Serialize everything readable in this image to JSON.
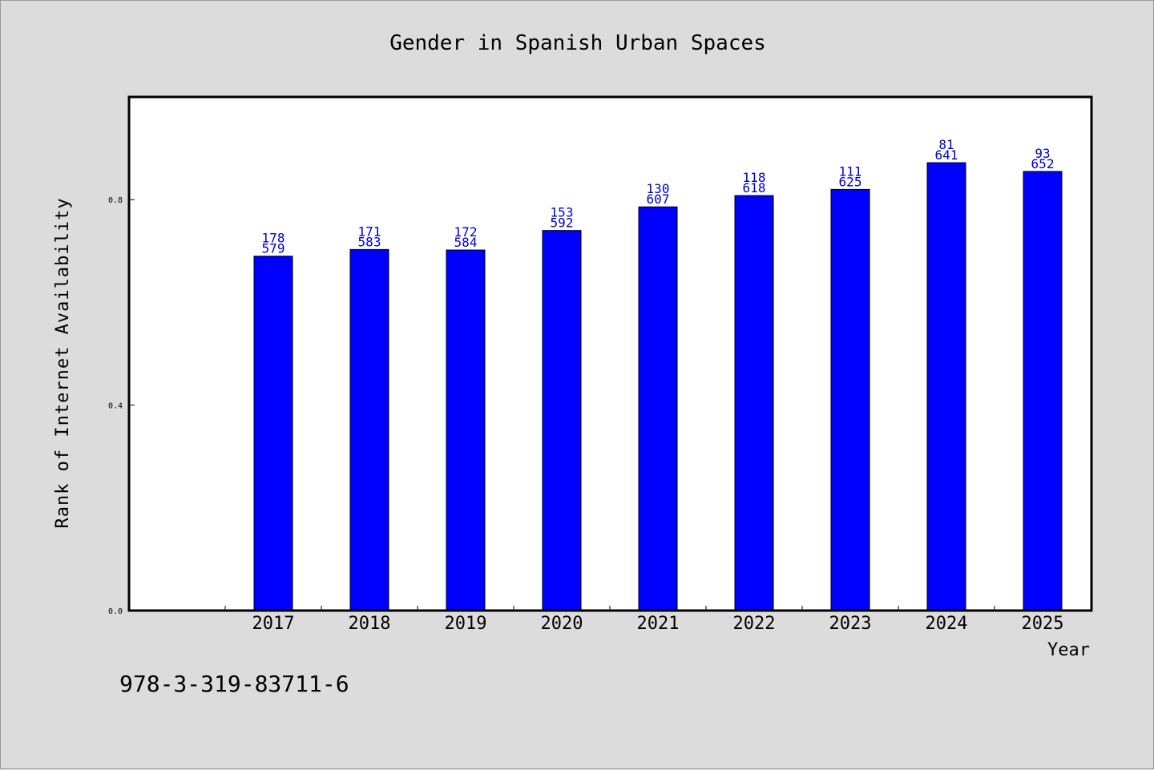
{
  "chart_data": {
    "type": "bar",
    "title": "Gender in Spanish Urban Spaces",
    "xlabel": "Year",
    "ylabel": "Rank of Internet Availability",
    "categories": [
      "2017",
      "2018",
      "2019",
      "2020",
      "2021",
      "2022",
      "2023",
      "2024",
      "2025"
    ],
    "values": [
      0.69,
      0.703,
      0.702,
      0.74,
      0.786,
      0.808,
      0.82,
      0.872,
      0.855
    ],
    "bar_labels_top": [
      "178",
      "171",
      "172",
      "153",
      "130",
      "118",
      "111",
      "81",
      "93"
    ],
    "bar_labels_bottom": [
      "579",
      "583",
      "584",
      "592",
      "607",
      "618",
      "625",
      "641",
      "652"
    ],
    "yticks": [
      "0.0",
      "0.4",
      "0.8"
    ],
    "ylim": [
      0,
      1.0
    ],
    "grid": false,
    "colors": {
      "bar": "#0000ff",
      "label": "#0000cc",
      "plot_bg": "#ffffff",
      "page_bg": "#dcdcdc"
    }
  },
  "footer": {
    "isbn": "978-3-319-83711-6"
  }
}
